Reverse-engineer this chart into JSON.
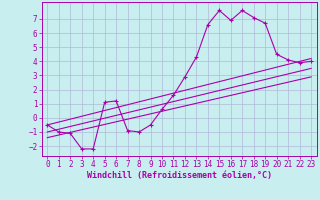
{
  "bg_color": "#c8eef0",
  "grid_color": "#b0b8d8",
  "line_color": "#aa00aa",
  "xlabel": "Windchill (Refroidissement éolien,°C)",
  "xlabel_fontsize": 6.0,
  "tick_fontsize": 5.5,
  "xlim": [
    -0.5,
    23.5
  ],
  "ylim": [
    -2.7,
    8.2
  ],
  "yticks": [
    -2,
    -1,
    0,
    1,
    2,
    3,
    4,
    5,
    6,
    7
  ],
  "xticks": [
    0,
    1,
    2,
    3,
    4,
    5,
    6,
    7,
    8,
    9,
    10,
    11,
    12,
    13,
    14,
    15,
    16,
    17,
    18,
    19,
    20,
    21,
    22,
    23
  ],
  "main_x": [
    0,
    1,
    2,
    3,
    4,
    5,
    6,
    7,
    8,
    9,
    10,
    11,
    12,
    13,
    14,
    15,
    16,
    17,
    18,
    19,
    20,
    21,
    22,
    23
  ],
  "main_y": [
    -0.5,
    -1.0,
    -1.1,
    -2.2,
    -2.2,
    1.1,
    1.2,
    -0.9,
    -1.0,
    -0.5,
    0.6,
    1.6,
    2.9,
    4.3,
    6.6,
    7.6,
    6.9,
    7.6,
    7.1,
    6.7,
    4.5,
    4.1,
    3.9,
    4.0
  ],
  "line2_x": [
    0,
    23
  ],
  "line2_y": [
    -1.0,
    3.5
  ],
  "line3_x": [
    0,
    23
  ],
  "line3_y": [
    -0.5,
    4.2
  ],
  "line4_x": [
    0,
    23
  ],
  "line4_y": [
    -1.4,
    2.9
  ]
}
